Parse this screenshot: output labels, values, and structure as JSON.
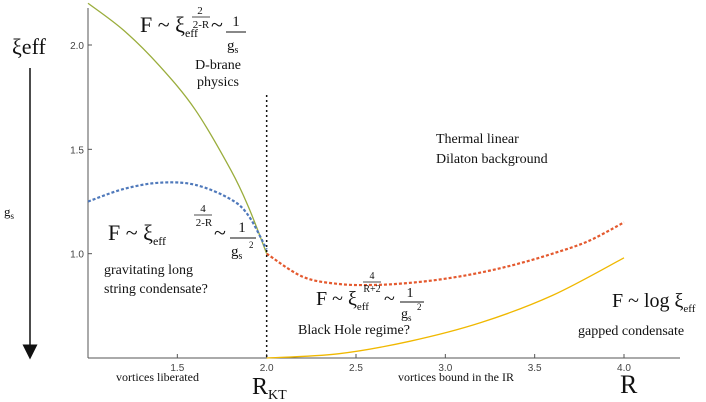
{
  "chart_data": {
    "type": "line",
    "title": "",
    "xlabel": "R",
    "ylabel": "ξeff",
    "xlim": [
      1.0,
      4.0
    ],
    "ylim": [
      0.5,
      2.2
    ],
    "x_ticks": [
      "1.5",
      "2.0",
      "2.5",
      "3.0",
      "3.5",
      "4.0"
    ],
    "y_ticks": [
      "1.0",
      "1.5",
      "2.0"
    ],
    "critical_line": {
      "x": 2.0,
      "label_main": "R",
      "label_sub": "KT"
    },
    "gs_arrow_label": "g",
    "gs_arrow_sub": "s",
    "series": [
      {
        "style": "solid",
        "color": "#9aad3c",
        "x": [
          1.0,
          1.2,
          1.4,
          1.6,
          1.8,
          1.9,
          2.0
        ],
        "y": [
          2.2,
          2.07,
          1.9,
          1.69,
          1.4,
          1.22,
          1.0
        ]
      },
      {
        "style": "dashed",
        "color": "#4f79bb",
        "x": [
          1.0,
          1.2,
          1.4,
          1.6,
          1.8,
          1.9,
          2.0
        ],
        "y": [
          1.25,
          1.31,
          1.34,
          1.33,
          1.26,
          1.18,
          1.02
        ]
      },
      {
        "style": "dashed",
        "color": "#e4592e",
        "x": [
          2.0,
          2.2,
          2.4,
          2.6,
          2.8,
          3.0,
          3.2,
          3.4,
          3.6,
          3.8,
          4.0
        ],
        "y": [
          1.0,
          0.89,
          0.855,
          0.85,
          0.86,
          0.88,
          0.91,
          0.95,
          1.0,
          1.06,
          1.15
        ]
      },
      {
        "style": "solid",
        "color": "#f0b800",
        "x": [
          2.0,
          2.4,
          2.8,
          3.2,
          3.6,
          4.0
        ],
        "y": [
          0.5,
          0.52,
          0.58,
          0.67,
          0.8,
          0.98
        ]
      }
    ],
    "annotations": {
      "dbrane": {
        "F": "F ~ ξ",
        "sub": "eff",
        "exp_num": "2",
        "exp_den": "2-R",
        "tilde": "~",
        "frac_num": "1",
        "frac_den": "g",
        "frac_den_sub": "s",
        "line1": "D-brane",
        "line2": "physics"
      },
      "gravitating": {
        "F": "F ~ ξ",
        "sub": "eff",
        "exp_num": "4",
        "exp_den": "2-R",
        "tilde": "~",
        "frac_num": "1",
        "frac_den": "g",
        "frac_den_sub": "s",
        "frac_den_sup": "2",
        "line1": "gravitating long",
        "line2": "string condensate?"
      },
      "blackhole": {
        "F": "F ~ ξ",
        "sub": "eff",
        "exp_num": "4",
        "exp_den": "R+2",
        "tilde": "~",
        "frac_num": "1",
        "frac_den": "g",
        "frac_den_sub": "s",
        "frac_den_sup": "2",
        "line1": "Black Hole regime?"
      },
      "gapped": {
        "F": "F ~ log ξ",
        "sub": "eff",
        "line1": "gapped condensate"
      },
      "thermal": {
        "line1": "Thermal linear",
        "line2": "Dilaton background"
      },
      "liberated": "vortices liberated",
      "bound": "vortices bound in the IR"
    }
  }
}
